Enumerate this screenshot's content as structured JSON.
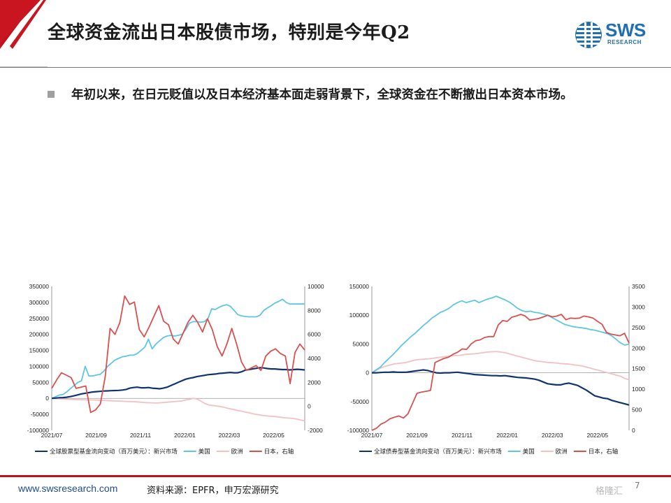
{
  "header": {
    "title": "全球资金流出日本股债市场，特别是今年Q2",
    "logo_text": "SWS",
    "logo_sub": "RESEARCH"
  },
  "body": {
    "bullet": "年初以来，在日元贬值以及日本经济基本面走弱背景下，全球资金在不断撤出日本资本市场。"
  },
  "footer": {
    "url": "www.swsresearch.com",
    "source": "资料来源：EPFR，申万宏源研究",
    "page_number": "7",
    "watermark": "格隆汇"
  },
  "colors": {
    "emerging": "#10346e",
    "us": "#5ec6e4",
    "europe": "#f2c2c2",
    "japan": "#d9514f",
    "title_accent": "#c0121c"
  },
  "chart_data": [
    {
      "type": "line",
      "title": "",
      "x_ticks": [
        "2021/07",
        "2021/09",
        "2021/11",
        "2022/01",
        "2022/03",
        "2022/05"
      ],
      "ylim": [
        -100000,
        350000
      ],
      "y_ticks": [
        -100000,
        -50000,
        0,
        50000,
        100000,
        150000,
        200000,
        250000,
        300000,
        350000
      ],
      "y2lim": [
        -2000,
        10000
      ],
      "y2_ticks": [
        -2000,
        0,
        2000,
        4000,
        6000,
        8000,
        10000
      ],
      "legend": [
        "全球股票型基金流向变动（百万美元）：新兴市场",
        "美国",
        "欧洲",
        "日本，右轴"
      ],
      "grid": false,
      "series": [
        {
          "name": "全球股票型基金流向变动（百万美元）：新兴市场",
          "axis": "left",
          "values": [
            0,
            1000,
            2000,
            2500,
            3500,
            5500,
            8000,
            11000,
            14000,
            16000,
            18000,
            20000,
            21000,
            22000,
            23000,
            23500,
            24000,
            24500,
            25000,
            26000,
            28000,
            32000,
            34000,
            35000,
            33000,
            33000,
            34000,
            32000,
            31000,
            30000,
            32000,
            35000,
            40000,
            45000,
            50000,
            55000,
            60000,
            63000,
            65000,
            68000,
            70000,
            72000,
            74000,
            75000,
            76000,
            78000,
            79000,
            80000,
            81000,
            80000,
            80000,
            83000,
            88000,
            90000,
            92000,
            94000,
            96000,
            95000,
            93000,
            92000,
            92000,
            91000,
            90000,
            90000,
            89000,
            90000,
            91000,
            90000,
            89000
          ]
        },
        {
          "name": "美国",
          "axis": "left",
          "values": [
            0,
            5000,
            10000,
            12000,
            20000,
            30000,
            40000,
            50000,
            55000,
            100000,
            70000,
            70000,
            73000,
            75000,
            85000,
            100000,
            110000,
            120000,
            125000,
            130000,
            132000,
            135000,
            135000,
            140000,
            150000,
            160000,
            185000,
            155000,
            170000,
            180000,
            190000,
            195000,
            197000,
            195000,
            197000,
            200000,
            215000,
            235000,
            240000,
            240000,
            238000,
            240000,
            250000,
            280000,
            278000,
            285000,
            290000,
            293000,
            288000,
            275000,
            262000,
            258000,
            256000,
            255000,
            255000,
            255000,
            260000,
            275000,
            283000,
            290000,
            298000,
            303000,
            310000,
            300000,
            295000,
            295000,
            295000,
            295000,
            295000
          ]
        },
        {
          "name": "欧洲",
          "axis": "left",
          "values": [
            0,
            -1000,
            -1500,
            -2000,
            -2500,
            -3000,
            -3500,
            -4000,
            -4000,
            -4500,
            -5000,
            -5000,
            -5500,
            -6000,
            -6500,
            -7000,
            -7500,
            -8000,
            -8500,
            -9000,
            -9500,
            -10000,
            -10500,
            -11000,
            -12000,
            -13000,
            -13500,
            -14000,
            -14500,
            -14000,
            -13000,
            -12000,
            -11000,
            -10000,
            -9000,
            -8000,
            -5000,
            -3000,
            0,
            -2000,
            -8000,
            -15000,
            -20000,
            -22000,
            -23000,
            -25000,
            -27000,
            -30000,
            -33000,
            -35000,
            -38000,
            -40000,
            -43000,
            -45000,
            -48000,
            -50000,
            -52000,
            -54000,
            -55000,
            -56000,
            -57000,
            -58000,
            -60000,
            -61000,
            -62000,
            -63000,
            -65000,
            -68000,
            -70000
          ]
        },
        {
          "name": "日本，右轴",
          "axis": "right",
          "values": [
            1500,
            2200,
            2800,
            2600,
            2400,
            1500,
            1600,
            1700,
            -500,
            -300,
            200,
            2500,
            6500,
            6000,
            7000,
            9200,
            8500,
            8700,
            6400,
            5800,
            6600,
            7500,
            8400,
            7100,
            6800,
            5600,
            5200,
            6100,
            7000,
            7600,
            7000,
            6200,
            7300,
            6400,
            5000,
            4200,
            5200,
            6500,
            5200,
            3700,
            3000,
            3200,
            3400,
            3000,
            4200,
            4600,
            4800,
            4400,
            4200,
            1900,
            4500,
            5200,
            4700
          ]
        }
      ]
    },
    {
      "type": "line",
      "title": "",
      "x_ticks": [
        "2021/07",
        "2021/09",
        "2021/11",
        "2022/01",
        "2022/03",
        "2022/05"
      ],
      "ylim": [
        -100000,
        150000
      ],
      "y_ticks": [
        -100000,
        -50000,
        0,
        50000,
        100000,
        150000
      ],
      "y2lim": [
        0,
        3500
      ],
      "y2_ticks": [
        0,
        500,
        1000,
        1500,
        2000,
        2500,
        3000,
        3500
      ],
      "legend": [
        "全球债券型基金流向变动（百万美元）：新兴市场",
        "美国",
        "欧洲",
        "日本，右轴"
      ],
      "grid": false,
      "series": [
        {
          "name": "全球债券型基金流向变动（百万美元）：新兴市场",
          "axis": "left",
          "values": [
            0,
            0,
            500,
            1000,
            1000,
            1500,
            1000,
            800,
            1000,
            2000,
            3000,
            4000,
            5000,
            4000,
            2000,
            0,
            -500,
            0,
            0,
            500,
            1000,
            0,
            -1000,
            -2000,
            -3000,
            -3500,
            -4000,
            -4500,
            -5000,
            -5000,
            -5500,
            -5000,
            -6000,
            -7000,
            -8000,
            -8500,
            -9000,
            -10000,
            -11000,
            -13000,
            -16000,
            -19000,
            -20000,
            -21000,
            -21000,
            -19000,
            -18000,
            -20000,
            -22000,
            -26000,
            -30000,
            -35000,
            -40000,
            -42000,
            -44000,
            -45000,
            -48000,
            -50000,
            -52000,
            -54000,
            -56000
          ]
        },
        {
          "name": "美国",
          "axis": "left",
          "values": [
            0,
            5000,
            10000,
            18000,
            25000,
            32000,
            40000,
            48000,
            55000,
            62000,
            68000,
            75000,
            82000,
            88000,
            95000,
            100000,
            105000,
            108000,
            112000,
            118000,
            122000,
            125000,
            122000,
            124000,
            126000,
            122000,
            125000,
            128000,
            130000,
            133000,
            130000,
            127000,
            123000,
            118000,
            112000,
            108000,
            106000,
            107000,
            105000,
            104000,
            102000,
            100000,
            96000,
            92000,
            88000,
            84000,
            82000,
            80000,
            79000,
            78000,
            77000,
            75000,
            74000,
            72000,
            70000,
            68000,
            64000,
            58000,
            52000,
            48000,
            50000
          ]
        },
        {
          "name": "欧洲",
          "axis": "left",
          "values": [
            0,
            4000,
            8000,
            11000,
            13000,
            15000,
            16000,
            17000,
            18000,
            20000,
            22000,
            23000,
            23500,
            24000,
            25000,
            26000,
            27000,
            28000,
            29000,
            30000,
            30000,
            31000,
            32000,
            32500,
            33000,
            34000,
            35000,
            36000,
            36500,
            37000,
            36000,
            35000,
            33000,
            31000,
            29000,
            27000,
            25000,
            23000,
            21000,
            20000,
            19000,
            18000,
            17500,
            17000,
            16000,
            15500,
            15000,
            14000,
            13000,
            12000,
            10000,
            8000,
            6000,
            4000,
            2000,
            0,
            -2000,
            -4000,
            -6000,
            -10000,
            -12000
          ]
        },
        {
          "name": "日本，右轴",
          "axis": "right",
          "values": [
            0,
            50,
            150,
            200,
            280,
            320,
            350,
            300,
            400,
            650,
            900,
            930,
            950,
            970,
            1650,
            1700,
            1750,
            1780,
            1850,
            1900,
            1980,
            1970,
            2100,
            2180,
            2200,
            2260,
            2280,
            2280,
            2560,
            2670,
            2650,
            2750,
            2780,
            2820,
            2780,
            2680,
            2700,
            2720,
            2760,
            2800,
            2760,
            2780,
            2820,
            2690,
            2730,
            2720,
            2730,
            2780,
            2760,
            2730,
            2650,
            2580,
            2380,
            2340,
            2320,
            2300,
            2360,
            2120
          ]
        }
      ]
    }
  ]
}
